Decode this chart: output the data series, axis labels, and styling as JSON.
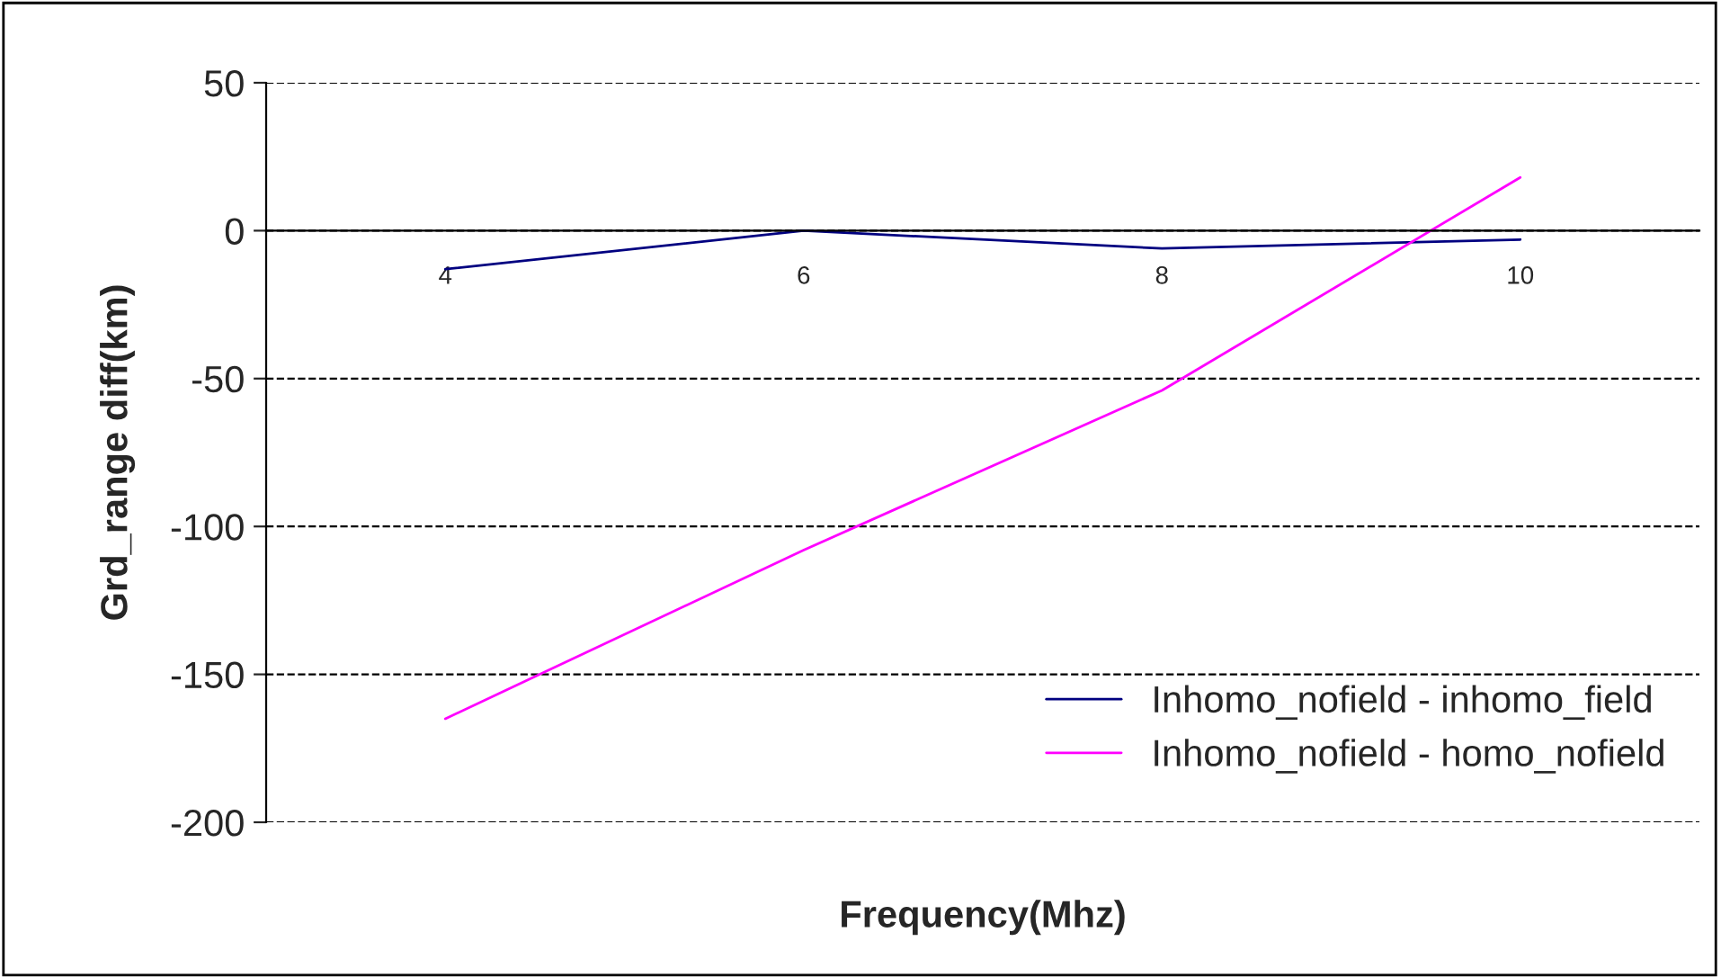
{
  "chart_data": {
    "type": "line",
    "xlabel": "Frequency(Mhz)",
    "ylabel": "Grd_range diff(km)",
    "categories": [
      "4",
      "6",
      "8",
      "10"
    ],
    "series": [
      {
        "name": "Inhomo_nofield - inhomo_field",
        "color": "#000080",
        "values": [
          -13,
          0,
          -6,
          -3
        ]
      },
      {
        "name": "Inhomo_nofield - homo_nofield",
        "color": "#ff00ff",
        "values": [
          -165,
          -108,
          -54,
          18
        ]
      }
    ],
    "ylim": [
      -200,
      50
    ],
    "yticks": [
      -200,
      -150,
      -100,
      -50,
      0,
      50
    ],
    "grid": "y",
    "legend": "bottom right",
    "marker": "none",
    "line_style": "solid"
  }
}
